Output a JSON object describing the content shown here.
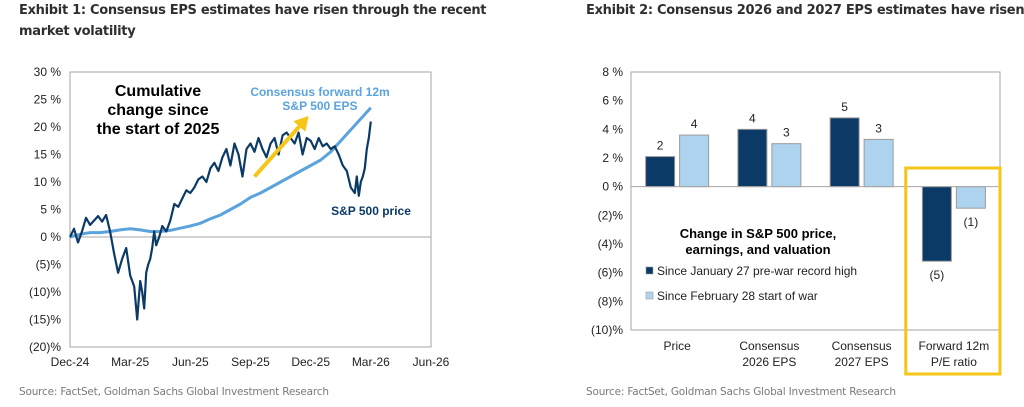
{
  "exhibit1": {
    "title": "Exhibit 1: Consensus EPS estimates have risen through the recent market volatility",
    "source": "Source: FactSet, Goldman Sachs Global Investment Research"
  },
  "exhibit2": {
    "title": "Exhibit 2: Consensus 2026 and 2027 EPS estimates have risen dur",
    "source": "Source: FactSet, Goldman Sachs Global Investment Research"
  },
  "chart_data": [
    {
      "type": "line",
      "title": "Cumulative change since the start of 2025",
      "annotation_lines": [
        "Cumulative",
        "change since",
        "the start of 2025"
      ],
      "xlabel": "",
      "ylabel": "",
      "x_ticks": [
        "Dec-24",
        "Mar-25",
        "Jun-25",
        "Sep-25",
        "Dec-25",
        "Mar-26",
        "Jun-26"
      ],
      "x_range_months": [
        0,
        18
      ],
      "ylim": [
        -20,
        30
      ],
      "y_ticks": [
        30,
        25,
        20,
        15,
        10,
        5,
        0,
        -5,
        -10,
        -15,
        -20
      ],
      "y_tick_labels": [
        "30 %",
        "25 %",
        "20 %",
        "15 %",
        "10 %",
        "5 %",
        "0 %",
        "(5)%",
        "(10)%",
        "(15)%",
        "(20)%"
      ],
      "grid": false,
      "zero_line": true,
      "trend_arrow": {
        "color": "#f5c518",
        "from": [
          9.2,
          11
        ],
        "to": [
          11.9,
          22
        ]
      },
      "series": [
        {
          "name": "S&P 500 price",
          "label_lines": [
            "S&P 500 price"
          ],
          "color": "#0c3a66",
          "x_months": [
            0.0,
            0.2,
            0.4,
            0.6,
            0.8,
            1.0,
            1.2,
            1.4,
            1.6,
            1.8,
            2.0,
            2.2,
            2.4,
            2.6,
            2.8,
            3.0,
            3.2,
            3.35,
            3.5,
            3.6,
            3.7,
            3.8,
            3.9,
            4.0,
            4.1,
            4.2,
            4.3,
            4.45,
            4.6,
            4.8,
            5.0,
            5.2,
            5.4,
            5.6,
            5.8,
            6.0,
            6.2,
            6.4,
            6.6,
            6.8,
            7.0,
            7.2,
            7.4,
            7.6,
            7.8,
            8.0,
            8.2,
            8.4,
            8.6,
            8.8,
            9.0,
            9.2,
            9.4,
            9.6,
            9.8,
            10.0,
            10.2,
            10.4,
            10.6,
            10.8,
            11.0,
            11.2,
            11.4,
            11.6,
            11.8,
            12.0,
            12.2,
            12.4,
            12.6,
            12.8,
            13.0,
            13.2,
            13.4,
            13.6,
            13.8,
            14.0,
            14.2,
            14.3,
            14.4,
            14.5,
            14.6,
            14.7,
            14.8,
            14.9,
            15.0
          ],
          "values": [
            0.0,
            1.5,
            -1.0,
            1.0,
            3.5,
            2.2,
            3.0,
            3.8,
            2.8,
            4.0,
            1.0,
            -3.0,
            -6.5,
            -4.0,
            -2.0,
            -7.0,
            -9.0,
            -15.0,
            -8.0,
            -10.0,
            -13.0,
            -6.5,
            -5.0,
            -4.0,
            -2.0,
            1.0,
            -1.5,
            0.0,
            2.0,
            1.0,
            3.0,
            6.0,
            5.5,
            7.0,
            8.5,
            8.0,
            9.0,
            10.5,
            11.0,
            10.0,
            12.5,
            13.5,
            12.0,
            14.5,
            16.0,
            13.0,
            17.0,
            15.0,
            11.0,
            16.0,
            17.0,
            15.5,
            18.0,
            16.0,
            14.5,
            17.0,
            18.0,
            15.0,
            18.5,
            19.0,
            18.0,
            17.0,
            19.0,
            15.0,
            18.0,
            17.5,
            16.0,
            18.0,
            16.5,
            17.0,
            16.0,
            16.5,
            15.0,
            13.0,
            12.0,
            9.0,
            8.0,
            11.0,
            7.5,
            10.0,
            11.0,
            12.5,
            16.0,
            18.0,
            21.0
          ]
        },
        {
          "name": "Consensus forward 12m S&P 500 EPS",
          "label_lines": [
            "Consensus forward 12m",
            "S&P 500 EPS"
          ],
          "color": "#5ba3dd",
          "x_months": [
            0.0,
            0.5,
            1.0,
            1.5,
            2.0,
            2.5,
            3.0,
            3.5,
            4.0,
            4.5,
            5.0,
            5.5,
            6.0,
            6.5,
            7.0,
            7.5,
            8.0,
            8.5,
            9.0,
            9.5,
            10.0,
            10.5,
            11.0,
            11.5,
            12.0,
            12.5,
            13.0,
            13.5,
            14.0,
            14.5,
            15.0
          ],
          "values": [
            0.0,
            0.5,
            0.8,
            0.8,
            1.0,
            1.3,
            1.5,
            1.3,
            1.0,
            1.0,
            1.2,
            1.6,
            2.0,
            2.5,
            3.3,
            4.0,
            5.0,
            6.0,
            7.2,
            8.0,
            9.0,
            10.0,
            11.0,
            12.0,
            13.0,
            14.0,
            15.5,
            17.5,
            19.5,
            21.5,
            23.5
          ]
        }
      ]
    },
    {
      "type": "bar",
      "title": "Change in S&P 500 price, earnings, and valuation",
      "annotation_lines": [
        "Change in  S&P 500 price,",
        "earnings, and valuation"
      ],
      "categories": [
        "Price",
        "Consensus 2026 EPS",
        "Consensus 2027 EPS",
        "Forward 12m P/E ratio"
      ],
      "category_label_lines": [
        [
          "Price"
        ],
        [
          "Consensus",
          "2026 EPS"
        ],
        [
          "Consensus",
          "2027 EPS"
        ],
        [
          "Forward 12m",
          "P/E ratio"
        ]
      ],
      "ylim": [
        -10,
        8
      ],
      "y_ticks": [
        8,
        6,
        4,
        2,
        0,
        -2,
        -4,
        -6,
        -8,
        -10
      ],
      "y_tick_labels": [
        "8 %",
        "6 %",
        "4 %",
        "2 %",
        "0 %",
        "(2)%",
        "(4)%",
        "(6)%",
        "(8)%",
        "(10)%"
      ],
      "grid": false,
      "legend_position": "center-left",
      "highlight": {
        "category": "Forward 12m P/E ratio",
        "color": "#f5c518"
      },
      "series": [
        {
          "name": "Since January 27 pre-war record high",
          "color": "#0c3a66",
          "values": [
            2.1,
            4.0,
            4.8,
            -5.2
          ],
          "data_labels": [
            "2",
            "4",
            "5",
            "(5)"
          ]
        },
        {
          "name": "Since February 28 start of war",
          "color": "#aed3ef",
          "values": [
            3.6,
            3.0,
            3.3,
            -1.5
          ],
          "data_labels": [
            "4",
            "3",
            "3",
            "(1)"
          ]
        }
      ]
    }
  ]
}
